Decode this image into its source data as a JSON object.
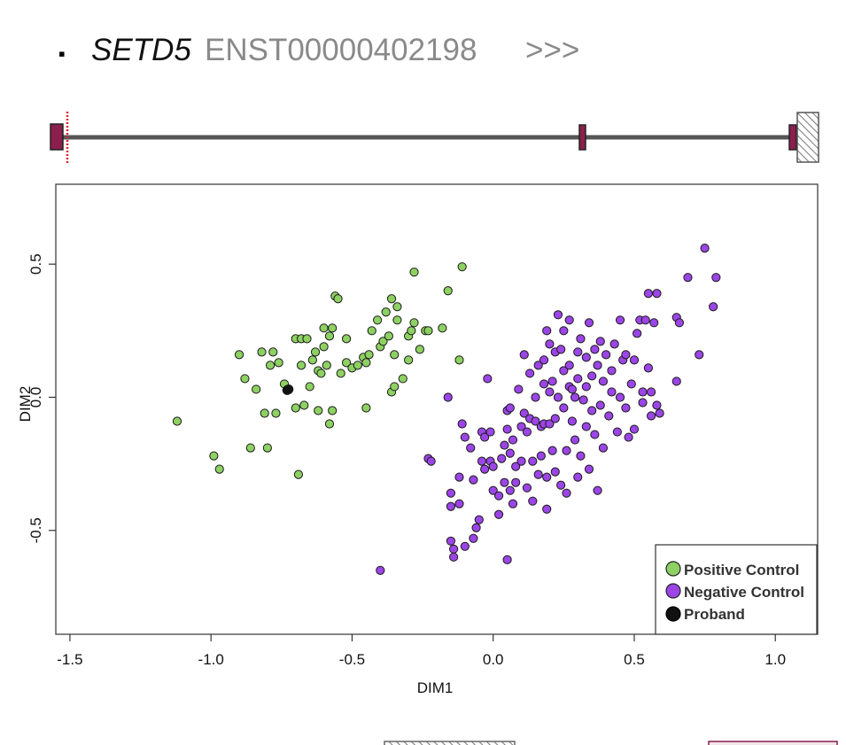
{
  "header": {
    "bullet": "▪",
    "gene": "SETD5",
    "transcript": "ENST00000402198",
    "direction": ">>>"
  },
  "colors": {
    "positive": "#8ed163",
    "negative": "#9b45e6",
    "proband": "#111111",
    "exon": "#8b1f4e",
    "intron": "#555555",
    "variant": "#e0202a",
    "header_gray": "#8a8a8a"
  },
  "chart_data": {
    "type": "scatter",
    "title": "",
    "xlabel": "DIM1",
    "ylabel": "DIM2",
    "xlim": [
      -1.55,
      1.15
    ],
    "ylim": [
      -0.89,
      0.8
    ],
    "xticks": [
      "-1.5",
      "-1.0",
      "-0.5",
      "0.0",
      "0.5",
      "1.0"
    ],
    "xtick_values": [
      -1.5,
      -1.0,
      -0.5,
      0.0,
      0.5,
      1.0
    ],
    "yticks": [
      "-0.5",
      "0.0",
      "0.5"
    ],
    "ytick_values": [
      -0.5,
      0.0,
      0.5
    ],
    "legend": {
      "position": "bottom-right",
      "entries": [
        "Positive Control",
        "Negative Control",
        "Proband"
      ]
    },
    "series": [
      {
        "name": "Positive Control",
        "color_key": "positive",
        "points": [
          [
            -1.12,
            -0.09
          ],
          [
            -0.99,
            -0.22
          ],
          [
            -0.97,
            -0.27
          ],
          [
            -0.9,
            0.16
          ],
          [
            -0.88,
            0.07
          ],
          [
            -0.86,
            -0.19
          ],
          [
            -0.84,
            0.03
          ],
          [
            -0.82,
            0.17
          ],
          [
            -0.81,
            -0.06
          ],
          [
            -0.8,
            -0.19
          ],
          [
            -0.79,
            0.12
          ],
          [
            -0.78,
            0.17
          ],
          [
            -0.77,
            -0.06
          ],
          [
            -0.76,
            0.13
          ],
          [
            -0.74,
            0.05
          ],
          [
            -0.7,
            0.22
          ],
          [
            -0.7,
            -0.04
          ],
          [
            -0.69,
            -0.29
          ],
          [
            -0.68,
            0.22
          ],
          [
            -0.68,
            0.12
          ],
          [
            -0.67,
            -0.03
          ],
          [
            -0.66,
            0.22
          ],
          [
            -0.65,
            0.04
          ],
          [
            -0.64,
            0.14
          ],
          [
            -0.63,
            0.17
          ],
          [
            -0.62,
            -0.05
          ],
          [
            -0.62,
            0.1
          ],
          [
            -0.61,
            0.09
          ],
          [
            -0.6,
            0.19
          ],
          [
            -0.6,
            0.26
          ],
          [
            -0.59,
            0.12
          ],
          [
            -0.58,
            0.23
          ],
          [
            -0.58,
            -0.1
          ],
          [
            -0.57,
            -0.05
          ],
          [
            -0.57,
            0.26
          ],
          [
            -0.56,
            0.38
          ],
          [
            -0.55,
            0.37
          ],
          [
            -0.54,
            0.09
          ],
          [
            -0.52,
            0.22
          ],
          [
            -0.52,
            0.13
          ],
          [
            -0.5,
            0.11
          ],
          [
            -0.48,
            0.12
          ],
          [
            -0.46,
            0.15
          ],
          [
            -0.45,
            0.13
          ],
          [
            -0.45,
            -0.04
          ],
          [
            -0.44,
            0.16
          ],
          [
            -0.43,
            0.25
          ],
          [
            -0.41,
            0.29
          ],
          [
            -0.4,
            0.19
          ],
          [
            -0.39,
            0.21
          ],
          [
            -0.38,
            0.32
          ],
          [
            -0.37,
            0.23
          ],
          [
            -0.36,
            0.37
          ],
          [
            -0.36,
            0.02
          ],
          [
            -0.35,
            0.04
          ],
          [
            -0.35,
            0.16
          ],
          [
            -0.34,
            0.34
          ],
          [
            -0.34,
            0.29
          ],
          [
            -0.32,
            0.07
          ],
          [
            -0.3,
            0.14
          ],
          [
            -0.3,
            0.23
          ],
          [
            -0.29,
            0.25
          ],
          [
            -0.28,
            0.28
          ],
          [
            -0.28,
            0.47
          ],
          [
            -0.26,
            0.18
          ],
          [
            -0.24,
            0.25
          ],
          [
            -0.23,
            0.25
          ],
          [
            -0.18,
            0.26
          ],
          [
            -0.16,
            0.4
          ],
          [
            -0.12,
            0.14
          ],
          [
            -0.11,
            0.49
          ]
        ]
      },
      {
        "name": "Negative Control",
        "color_key": "negative",
        "points": [
          [
            -0.4,
            -0.65
          ],
          [
            -0.23,
            -0.23
          ],
          [
            -0.22,
            -0.24
          ],
          [
            -0.16,
            0.0
          ],
          [
            -0.15,
            -0.36
          ],
          [
            -0.15,
            -0.41
          ],
          [
            -0.15,
            -0.54
          ],
          [
            -0.14,
            -0.57
          ],
          [
            -0.14,
            -0.6
          ],
          [
            -0.12,
            -0.3
          ],
          [
            -0.12,
            -0.4
          ],
          [
            -0.11,
            -0.1
          ],
          [
            -0.1,
            -0.15
          ],
          [
            -0.1,
            -0.56
          ],
          [
            -0.08,
            -0.19
          ],
          [
            -0.07,
            -0.31
          ],
          [
            -0.07,
            -0.53
          ],
          [
            -0.06,
            -0.49
          ],
          [
            -0.05,
            -0.46
          ],
          [
            -0.04,
            -0.13
          ],
          [
            -0.04,
            -0.24
          ],
          [
            -0.03,
            -0.27
          ],
          [
            -0.03,
            -0.15
          ],
          [
            -0.02,
            0.07
          ],
          [
            -0.01,
            -0.24
          ],
          [
            -0.01,
            -0.13
          ],
          [
            0.0,
            -0.26
          ],
          [
            0.0,
            -0.35
          ],
          [
            0.02,
            -0.44
          ],
          [
            0.02,
            -0.37
          ],
          [
            0.03,
            -0.23
          ],
          [
            0.04,
            -0.18
          ],
          [
            0.04,
            -0.32
          ],
          [
            0.05,
            -0.05
          ],
          [
            0.05,
            -0.12
          ],
          [
            0.05,
            -0.61
          ],
          [
            0.06,
            -0.21
          ],
          [
            0.06,
            -0.04
          ],
          [
            0.06,
            -0.35
          ],
          [
            0.07,
            -0.4
          ],
          [
            0.07,
            -0.16
          ],
          [
            0.08,
            -0.26
          ],
          [
            0.08,
            -0.32
          ],
          [
            0.09,
            0.03
          ],
          [
            0.1,
            -0.11
          ],
          [
            0.1,
            -0.24
          ],
          [
            0.11,
            0.16
          ],
          [
            0.11,
            -0.06
          ],
          [
            0.12,
            -0.13
          ],
          [
            0.12,
            -0.34
          ],
          [
            0.13,
            0.09
          ],
          [
            0.13,
            -0.08
          ],
          [
            0.14,
            -0.24
          ],
          [
            0.14,
            -0.39
          ],
          [
            0.15,
            -0.09
          ],
          [
            0.15,
            0.0
          ],
          [
            0.16,
            0.12
          ],
          [
            0.16,
            -0.29
          ],
          [
            0.17,
            -0.11
          ],
          [
            0.17,
            -0.22
          ],
          [
            0.18,
            -0.1
          ],
          [
            0.18,
            0.05
          ],
          [
            0.18,
            0.14
          ],
          [
            0.19,
            -0.3
          ],
          [
            0.19,
            -0.42
          ],
          [
            0.19,
            0.25
          ],
          [
            0.2,
            0.2
          ],
          [
            0.2,
            -0.1
          ],
          [
            0.2,
            0.02
          ],
          [
            0.21,
            0.06
          ],
          [
            0.21,
            -0.2
          ],
          [
            0.22,
            -0.28
          ],
          [
            0.22,
            -0.08
          ],
          [
            0.22,
            0.17
          ],
          [
            0.23,
            0.31
          ],
          [
            0.23,
            0.0
          ],
          [
            0.24,
            0.18
          ],
          [
            0.24,
            -0.33
          ],
          [
            0.25,
            0.1
          ],
          [
            0.25,
            -0.04
          ],
          [
            0.25,
            0.25
          ],
          [
            0.26,
            -0.2
          ],
          [
            0.26,
            -0.36
          ],
          [
            0.27,
            0.04
          ],
          [
            0.27,
            0.12
          ],
          [
            0.27,
            0.29
          ],
          [
            0.28,
            -0.09
          ],
          [
            0.28,
            0.03
          ],
          [
            0.29,
            0.0
          ],
          [
            0.29,
            -0.16
          ],
          [
            0.3,
            0.17
          ],
          [
            0.3,
            0.07
          ],
          [
            0.3,
            -0.3
          ],
          [
            0.31,
            -0.22
          ],
          [
            0.31,
            0.22
          ],
          [
            0.32,
            -0.01
          ],
          [
            0.33,
            0.15
          ],
          [
            0.33,
            -0.11
          ],
          [
            0.33,
            0.04
          ],
          [
            0.34,
            -0.27
          ],
          [
            0.34,
            0.28
          ],
          [
            0.35,
            0.08
          ],
          [
            0.35,
            -0.05
          ],
          [
            0.36,
            0.18
          ],
          [
            0.36,
            -0.14
          ],
          [
            0.37,
            0.12
          ],
          [
            0.37,
            -0.35
          ],
          [
            0.38,
            -0.03
          ],
          [
            0.38,
            0.21
          ],
          [
            0.39,
            0.06
          ],
          [
            0.39,
            -0.19
          ],
          [
            0.4,
            0.16
          ],
          [
            0.41,
            -0.07
          ],
          [
            0.42,
            0.02
          ],
          [
            0.42,
            0.1
          ],
          [
            0.43,
            0.2
          ],
          [
            0.44,
            -0.13
          ],
          [
            0.45,
            0.29
          ],
          [
            0.45,
            0.0
          ],
          [
            0.46,
            0.14
          ],
          [
            0.47,
            -0.04
          ],
          [
            0.47,
            0.16
          ],
          [
            0.48,
            -0.15
          ],
          [
            0.49,
            0.05
          ],
          [
            0.5,
            0.14
          ],
          [
            0.5,
            -0.12
          ],
          [
            0.51,
            0.24
          ],
          [
            0.52,
            0.29
          ],
          [
            0.53,
            -0.02
          ],
          [
            0.53,
            0.02
          ],
          [
            0.54,
            0.29
          ],
          [
            0.55,
            0.11
          ],
          [
            0.55,
            0.39
          ],
          [
            0.56,
            0.02
          ],
          [
            0.56,
            -0.07
          ],
          [
            0.57,
            0.28
          ],
          [
            0.58,
            0.39
          ],
          [
            0.58,
            -0.03
          ],
          [
            0.59,
            -0.06
          ],
          [
            0.65,
            0.3
          ],
          [
            0.65,
            0.06
          ],
          [
            0.66,
            0.28
          ],
          [
            0.69,
            0.45
          ],
          [
            0.73,
            0.16
          ],
          [
            0.75,
            0.56
          ],
          [
            0.78,
            0.34
          ],
          [
            0.79,
            0.45
          ]
        ]
      },
      {
        "name": "Proband",
        "color_key": "proband",
        "points": [
          [
            -0.725,
            0.03
          ],
          [
            -0.73,
            0.027
          ]
        ]
      }
    ]
  }
}
